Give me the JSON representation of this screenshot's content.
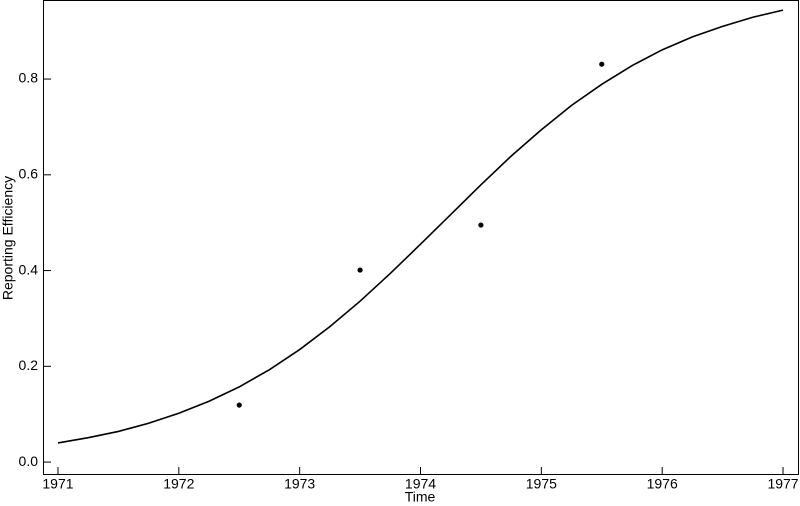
{
  "chart_data": {
    "type": "line",
    "x_label": "Time",
    "y_label": "Reporting Efficiency",
    "xlim": [
      1970.876,
      1977.124
    ],
    "ylim": [
      -0.027,
      0.963
    ],
    "xticks": [
      1971,
      1972,
      1973,
      1974,
      1975,
      1976,
      1977
    ],
    "yticks": [
      {
        "value": 0,
        "label": "0.0"
      },
      0.2,
      0.4,
      0.6,
      0.8
    ],
    "grid": false,
    "series": [
      {
        "type": "line",
        "color": "#000000",
        "x": [
          1971,
          1971.25,
          1971.5,
          1971.75,
          1972,
          1972.25,
          1972.5,
          1972.75,
          1973,
          1973.25,
          1973.5,
          1973.75,
          1974,
          1974.25,
          1974.5,
          1974.75,
          1975,
          1975.25,
          1975.5,
          1975.75,
          1976,
          1976.25,
          1976.5,
          1976.75,
          1977
        ],
        "y": [
          0.04,
          0.051,
          0.064,
          0.081,
          0.102,
          0.127,
          0.157,
          0.193,
          0.235,
          0.283,
          0.336,
          0.394,
          0.455,
          0.517,
          0.579,
          0.639,
          0.694,
          0.745,
          0.789,
          0.828,
          0.861,
          0.888,
          0.91,
          0.929,
          0.944
        ]
      },
      {
        "type": "scatter",
        "color": "#000000",
        "x": [
          1972.5,
          1973.5,
          1974.5,
          1975.5
        ],
        "y": [
          0.119,
          0.401,
          0.495,
          0.831
        ]
      }
    ]
  }
}
